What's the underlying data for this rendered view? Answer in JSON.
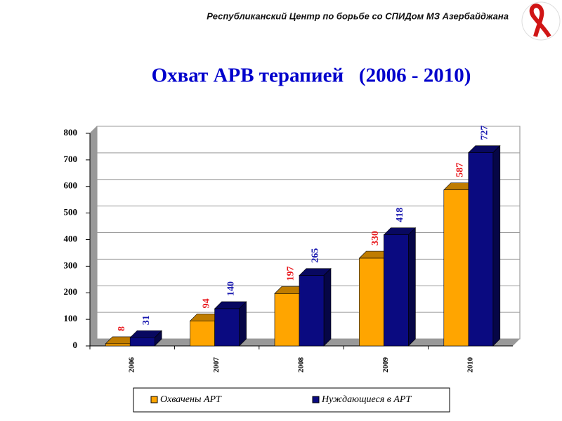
{
  "header": "Республиканский Центр по борьбе со СПИДом МЗ Азербайджана",
  "chart_data": {
    "type": "bar3d",
    "title": "Охват АРВ терапией   (2006 - 2010)",
    "categories": [
      "2006",
      "2007",
      "2008",
      "2009",
      "2010"
    ],
    "series": [
      {
        "name": "Охвачены АРТ",
        "color": "#ffa500",
        "label_color": "#e8161b",
        "values": [
          8,
          94,
          197,
          330,
          587
        ]
      },
      {
        "name": "Нуждающиеся в АРТ",
        "color": "#0a0a80",
        "label_color": "#1a1ab0",
        "values": [
          31,
          140,
          265,
          418,
          727
        ]
      }
    ],
    "ylim": [
      0,
      800
    ],
    "yticks": [
      0,
      100,
      200,
      300,
      400,
      500,
      600,
      700,
      800
    ],
    "grid": true,
    "legend": "bottom"
  }
}
